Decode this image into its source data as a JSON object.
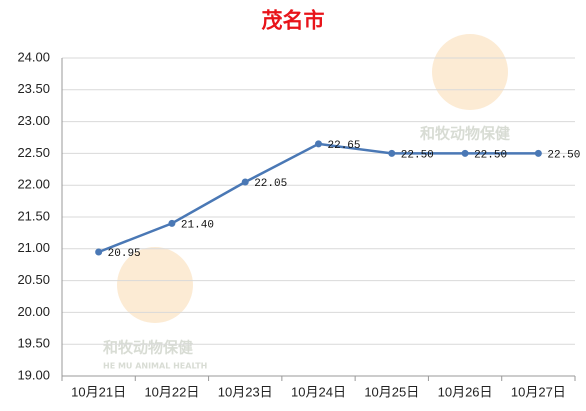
{
  "chart_data": {
    "type": "line",
    "title": "茂名市",
    "categories": [
      "10月21日",
      "10月22日",
      "10月23日",
      "10月24日",
      "10月25日",
      "10月26日",
      "10月27日"
    ],
    "series": [
      {
        "name": "茂名市",
        "color": "#4a78b5",
        "values": [
          20.95,
          21.4,
          22.05,
          22.65,
          22.5,
          22.5,
          22.5
        ],
        "value_labels": [
          "20.95",
          "21.40",
          "22.05",
          "22.65",
          "22.50",
          "22.50",
          "22.50"
        ]
      }
    ],
    "ylim": [
      19,
      24
    ],
    "yticks": [
      {
        "value": 19,
        "label": "19.00"
      },
      {
        "value": 19.5,
        "label": "19.50"
      },
      {
        "value": 20,
        "label": "20.00"
      },
      {
        "value": 20.5,
        "label": "20.50"
      },
      {
        "value": 21,
        "label": "21.00"
      },
      {
        "value": 21.5,
        "label": "21.50"
      },
      {
        "value": 22,
        "label": "22.00"
      },
      {
        "value": 22.5,
        "label": "22.50"
      },
      {
        "value": 23,
        "label": "23.00"
      },
      {
        "value": 23.5,
        "label": "23.50"
      },
      {
        "value": 24,
        "label": "24.00"
      }
    ],
    "grid": true,
    "watermarks": [
      "和牧动物保健",
      "和牧动物保健",
      "HE MU ANIMAL HEALTH"
    ]
  }
}
